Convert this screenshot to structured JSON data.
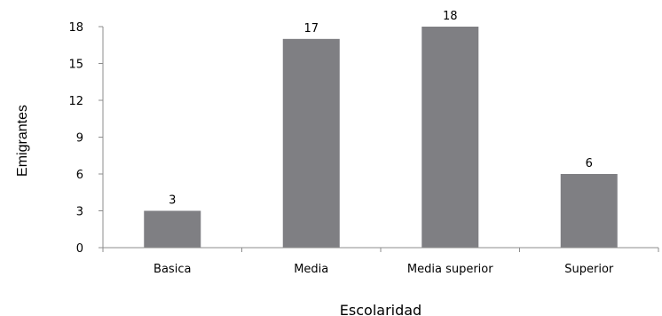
{
  "chart_data": {
    "type": "bar",
    "categories": [
      "Basica",
      "Media",
      "Media superior",
      "Superior"
    ],
    "values": [
      3,
      17,
      18,
      6
    ],
    "data_labels": [
      "3",
      "17",
      "18",
      "6"
    ],
    "yticks": [
      0,
      3,
      6,
      9,
      12,
      15,
      18
    ],
    "ylim": [
      0,
      18
    ],
    "xlabel": "Escolaridad",
    "ylabel": "Emigrantes",
    "bar_color": "#7f7f83",
    "grid": false,
    "legend": "none"
  }
}
